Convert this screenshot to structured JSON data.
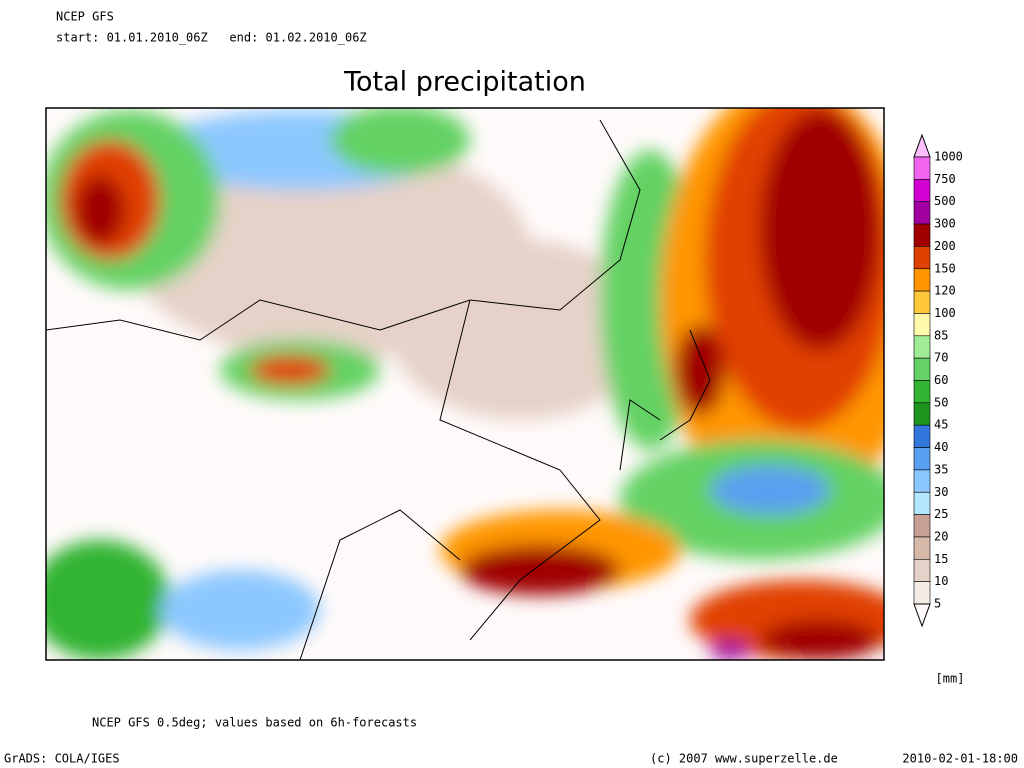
{
  "header": {
    "model": "NCEP GFS",
    "period": "start: 01.01.2010_06Z   end: 01.02.2010_06Z"
  },
  "title": "Total precipitation",
  "legend": {
    "levels": [
      1000,
      750,
      500,
      300,
      200,
      150,
      120,
      100,
      85,
      70,
      60,
      50,
      45,
      40,
      35,
      30,
      25,
      20,
      15,
      10,
      5
    ],
    "colors": [
      "#ffbeff",
      "#f064f0",
      "#d200d2",
      "#a000a0",
      "#a00000",
      "#e14100",
      "#ff9600",
      "#ffc83c",
      "#fffaaa",
      "#a0eb96",
      "#64d264",
      "#32b432",
      "#1e961e",
      "#3278dc",
      "#5aa0f0",
      "#8cc8ff",
      "#b4e6ff",
      "#c8a096",
      "#d7b9aa",
      "#e6d2c8",
      "#f5ece6",
      "#fffafa"
    ],
    "unit": "[mm]"
  },
  "footer": {
    "note": "NCEP GFS 0.5deg; values based on 6h-forecasts",
    "software": "GrADS: COLA/IGES",
    "copyright": "(c) 2007 www.superzelle.de",
    "timestamp": "2010-02-01-18:00"
  }
}
